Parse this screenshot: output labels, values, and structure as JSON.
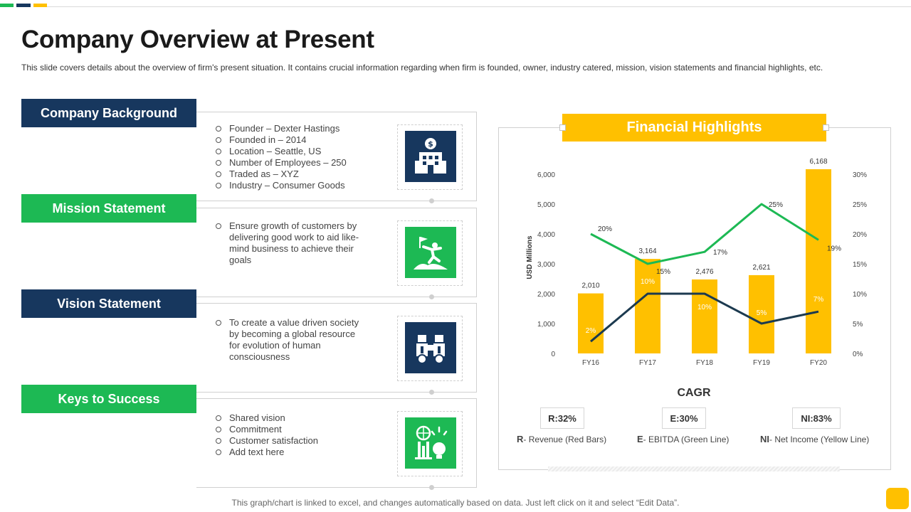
{
  "colors": {
    "navy": "#17375e",
    "green": "#1db954",
    "yellow": "#ffc000",
    "dark_line": "#1c3a4f"
  },
  "title": "Company Overview at Present",
  "subtitle": "This slide covers details about the overview  of firm's present situation. It contains crucial information  regarding when firm is founded,  owner,  industry catered,  mission, vision statements and financial highlights, etc.",
  "sections": [
    {
      "label": "Company Background",
      "icon": "hotel-building-icon",
      "bullets": [
        "Founder – Dexter Hastings",
        "Founded  in – 2014",
        "Location – Seattle, US",
        "Number of Employees – 250",
        "Traded  as – XYZ",
        "Industry – Consumer Goods"
      ]
    },
    {
      "label": "Mission Statement",
      "icon": "climber-flag-icon",
      "bullets": [
        "Ensure growth of customers by delivering  good work to aid like- mind business to achieve their goals"
      ]
    },
    {
      "label": "Vision Statement",
      "icon": "binoculars-icon",
      "bullets": [
        "To create a value driven society by becoming a global resource for evolution  of human consciousness"
      ]
    },
    {
      "label": "Keys to Success",
      "icon": "idea-strategy-icon",
      "bullets": [
        "Shared vision",
        "Commitment",
        "Customer satisfaction",
        "Add text here"
      ]
    }
  ],
  "financial": {
    "header": "Financial Highlights",
    "cagr_title": "CAGR",
    "cagr": [
      {
        "value": "R:32%",
        "key": "R",
        "desc": "Revenue (Red Bars)"
      },
      {
        "value": "E:30%",
        "key": "E",
        "desc": "EBITDA  (Green Line)"
      },
      {
        "value": "NI:83%",
        "key": "NI",
        "desc": "Net Income (Yellow Line)"
      }
    ]
  },
  "chart_data": {
    "type": "bar",
    "categories": [
      "FY16",
      "FY17",
      "FY18",
      "FY19",
      "FY20"
    ],
    "ylabel": "USD Millions",
    "ylim": [
      0,
      6000
    ],
    "yticks": [
      "0",
      "1,000",
      "2,000",
      "3,000",
      "4,000",
      "5,000",
      "6,000"
    ],
    "y2lim": [
      0,
      30
    ],
    "y2ticks": [
      "0%",
      "5%",
      "10%",
      "15%",
      "20%",
      "25%",
      "30%"
    ],
    "bars": {
      "values": [
        2010,
        3164,
        2476,
        2621,
        6168
      ],
      "labels": [
        "2,010",
        "3,164",
        "2,476",
        "2,621",
        "6,168"
      ],
      "color": "#ffc000"
    },
    "green_line": {
      "values": [
        20,
        15,
        17,
        25,
        19
      ],
      "labels": [
        "20%",
        "15%",
        "17%",
        "25%",
        "19%"
      ],
      "color": "#1db954"
    },
    "dark_line": {
      "values": [
        2,
        10,
        10,
        5,
        7
      ],
      "labels": [
        "2%",
        "10%",
        "10%",
        "5%",
        "7%"
      ],
      "color": "#1c3a4f"
    },
    "grid": false
  },
  "footer": "This graph/chart is linked to excel,  and changes automatically based on data. Just left click on it and select “Edit Data”."
}
